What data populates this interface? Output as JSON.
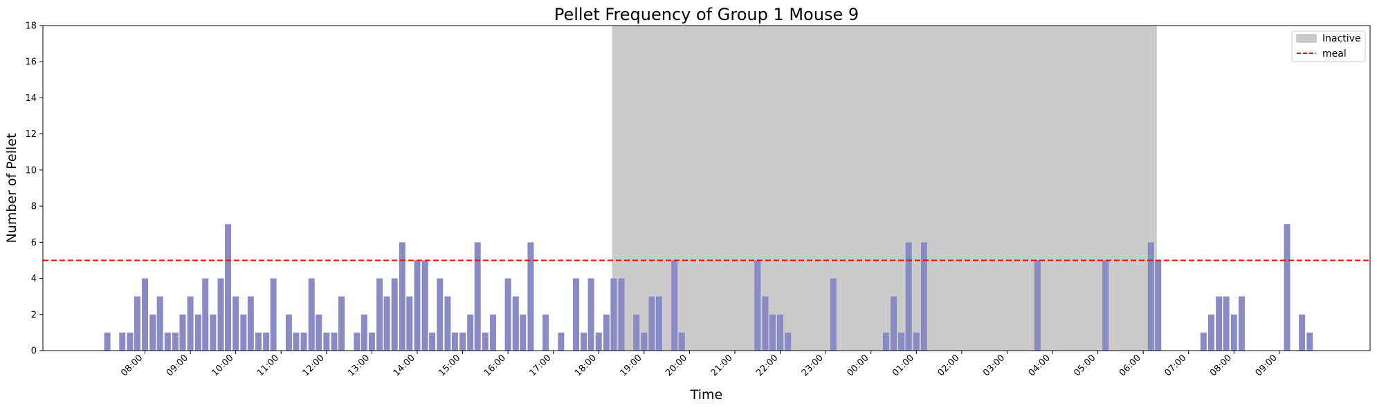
{
  "chart_data": {
    "type": "bar",
    "title": "Pellet Frequency of Group 1 Mouse 9",
    "xlabel": "Time",
    "ylabel": "Number of Pellet",
    "ylim": [
      0,
      18
    ],
    "yticks": [
      0,
      2,
      4,
      6,
      8,
      10,
      12,
      14,
      16,
      18
    ],
    "xlim_hours": [
      -2.25,
      27.0
    ],
    "xtick_labels": [
      "08:00",
      "09:00",
      "10:00",
      "11:00",
      "12:00",
      "13:00",
      "14:00",
      "15:00",
      "16:00",
      "17:00",
      "18:00",
      "19:00",
      "20:00",
      "21:00",
      "22:00",
      "23:00",
      "00:00",
      "01:00",
      "02:00",
      "03:00",
      "04:00",
      "05:00",
      "06:00",
      "07:00",
      "08:00",
      "09:00"
    ],
    "bar_color": "#8a8ac4",
    "meal_threshold": 5,
    "meal_color": "#ff0000",
    "inactive_span_hours": [
      10.3,
      22.3
    ],
    "inactive_color": "#cbcbcb",
    "legend": {
      "position": "top-right",
      "inactive_label": "Inactive",
      "meal_label": "meal"
    },
    "bars": [
      [
        -0.83,
        1
      ],
      [
        -0.5,
        1
      ],
      [
        -0.33,
        1
      ],
      [
        -0.17,
        3
      ],
      [
        0.0,
        4
      ],
      [
        0.17,
        2
      ],
      [
        0.33,
        3
      ],
      [
        0.5,
        1
      ],
      [
        0.67,
        1
      ],
      [
        0.83,
        2
      ],
      [
        1.0,
        3
      ],
      [
        1.17,
        2
      ],
      [
        1.33,
        4
      ],
      [
        1.5,
        2
      ],
      [
        1.67,
        4
      ],
      [
        1.83,
        7
      ],
      [
        2.0,
        3
      ],
      [
        2.17,
        2
      ],
      [
        2.33,
        3
      ],
      [
        2.5,
        1
      ],
      [
        2.67,
        1
      ],
      [
        2.83,
        4
      ],
      [
        3.17,
        2
      ],
      [
        3.33,
        1
      ],
      [
        3.5,
        1
      ],
      [
        3.67,
        4
      ],
      [
        3.83,
        2
      ],
      [
        4.0,
        1
      ],
      [
        4.17,
        1
      ],
      [
        4.33,
        3
      ],
      [
        4.67,
        1
      ],
      [
        4.83,
        2
      ],
      [
        5.0,
        1
      ],
      [
        5.17,
        4
      ],
      [
        5.33,
        3
      ],
      [
        5.5,
        4
      ],
      [
        5.67,
        6
      ],
      [
        5.83,
        3
      ],
      [
        6.0,
        5
      ],
      [
        6.17,
        5
      ],
      [
        6.33,
        1
      ],
      [
        6.5,
        4
      ],
      [
        6.67,
        3
      ],
      [
        6.83,
        1
      ],
      [
        7.0,
        1
      ],
      [
        7.17,
        2
      ],
      [
        7.33,
        6
      ],
      [
        7.5,
        1
      ],
      [
        7.67,
        2
      ],
      [
        8.0,
        4
      ],
      [
        8.17,
        3
      ],
      [
        8.33,
        2
      ],
      [
        8.5,
        6
      ],
      [
        8.83,
        2
      ],
      [
        9.17,
        1
      ],
      [
        9.5,
        4
      ],
      [
        9.67,
        1
      ],
      [
        9.83,
        4
      ],
      [
        10.0,
        1
      ],
      [
        10.17,
        2
      ],
      [
        10.33,
        4
      ],
      [
        10.5,
        4
      ],
      [
        10.83,
        2
      ],
      [
        11.0,
        1
      ],
      [
        11.17,
        3
      ],
      [
        11.33,
        3
      ],
      [
        11.67,
        5
      ],
      [
        11.83,
        1
      ],
      [
        13.5,
        5
      ],
      [
        13.67,
        3
      ],
      [
        13.83,
        2
      ],
      [
        14.0,
        2
      ],
      [
        14.17,
        1
      ],
      [
        15.17,
        4
      ],
      [
        16.33,
        1
      ],
      [
        16.5,
        3
      ],
      [
        16.67,
        1
      ],
      [
        16.83,
        6
      ],
      [
        17.0,
        1
      ],
      [
        17.17,
        6
      ],
      [
        19.67,
        5
      ],
      [
        21.17,
        5
      ],
      [
        22.17,
        6
      ],
      [
        22.33,
        5
      ],
      [
        23.33,
        1
      ],
      [
        23.5,
        2
      ],
      [
        23.67,
        3
      ],
      [
        23.83,
        3
      ],
      [
        24.0,
        2
      ],
      [
        24.17,
        3
      ],
      [
        25.17,
        7
      ],
      [
        25.5,
        2
      ],
      [
        25.67,
        1
      ]
    ]
  }
}
